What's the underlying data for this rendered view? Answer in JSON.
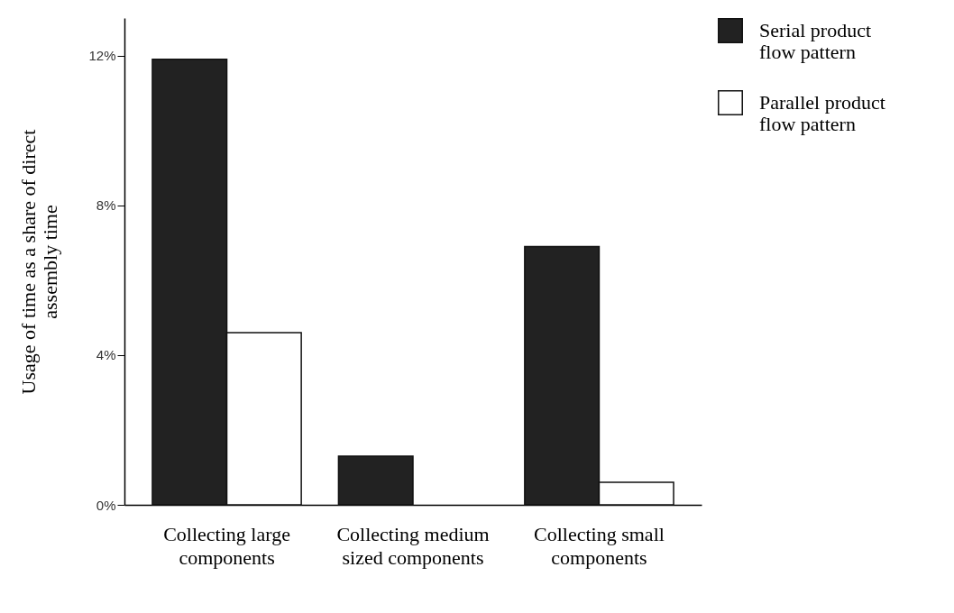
{
  "chart_data": {
    "type": "bar",
    "ylabel": "Usage of time as a share of direct assembly time",
    "categories": [
      "Collecting large components",
      "Collecting medium sized components",
      "Collecting small components"
    ],
    "series": [
      {
        "name": "Serial product flow pattern",
        "color": "#222222",
        "values": [
          11.9,
          1.3,
          6.9
        ]
      },
      {
        "name": "Parallel product flow pattern",
        "color": "#ffffff",
        "values": [
          4.6,
          null,
          0.6
        ]
      }
    ],
    "ylim": [
      0,
      13
    ],
    "yticks": [
      {
        "value": 0,
        "label": "0%"
      },
      {
        "value": 4,
        "label": "4%"
      },
      {
        "value": 8,
        "label": "8%"
      },
      {
        "value": 12,
        "label": "12%"
      }
    ],
    "grid": false,
    "legend": "top right"
  }
}
